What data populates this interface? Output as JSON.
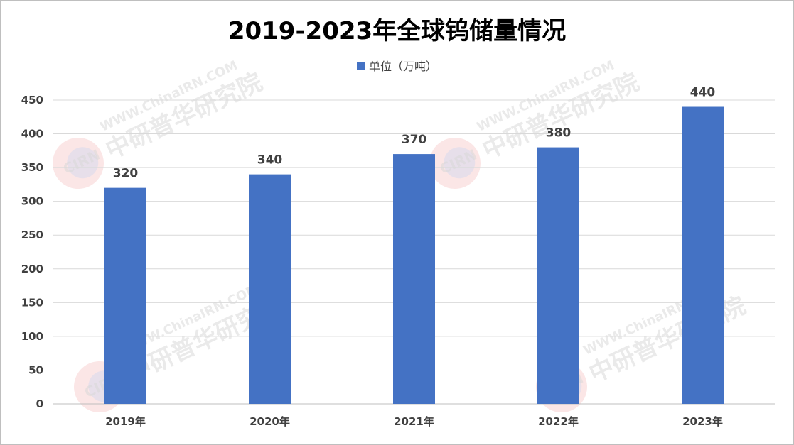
{
  "chart_data": {
    "type": "bar",
    "title": "2019-2023年全球钨储量情况",
    "categories": [
      "2019年",
      "2020年",
      "2021年",
      "2022年",
      "2023年"
    ],
    "series": [
      {
        "name": "单位（万吨）",
        "values": [
          320,
          340,
          370,
          380,
          440
        ]
      }
    ],
    "ylim": [
      0,
      450
    ],
    "yticks": [
      0,
      50,
      100,
      150,
      200,
      250,
      300,
      350,
      400,
      450
    ],
    "grid": true,
    "legend_position": "top-center",
    "data_labels": true
  },
  "colors": {
    "bar": "#4472c4",
    "grid": "#d9d9d9",
    "axis": "#bfbfbf"
  },
  "watermark": {
    "brand": "CIRN",
    "cn": "中研普华研究院",
    "url": "WWW.ChinaIRN.COM"
  }
}
